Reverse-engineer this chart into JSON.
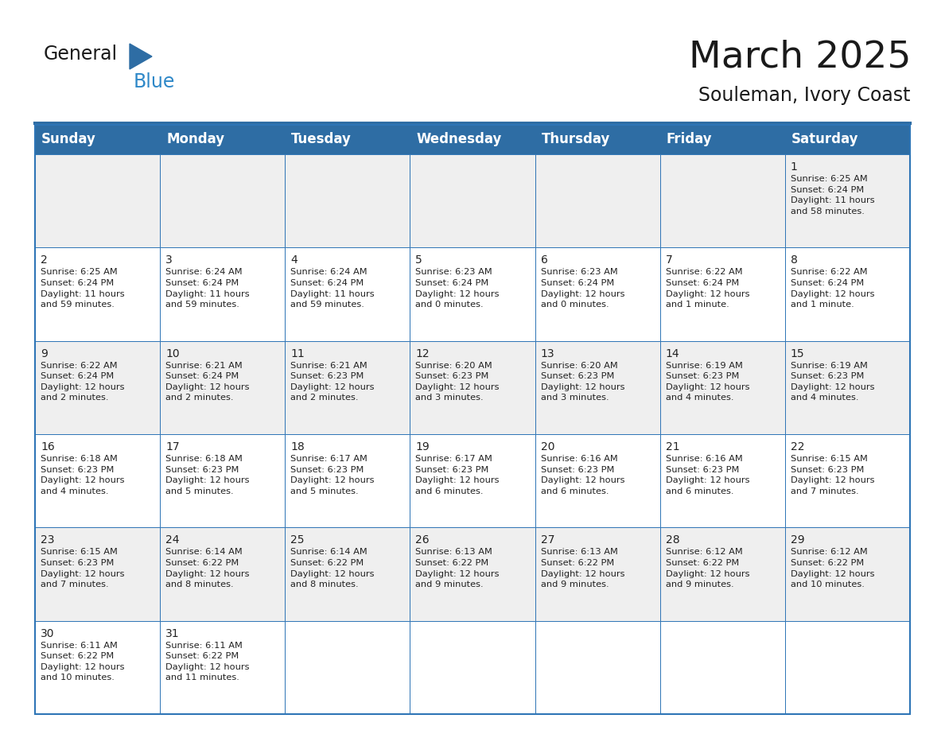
{
  "title": "March 2025",
  "subtitle": "Souleman, Ivory Coast",
  "header_color": "#2E6DA4",
  "header_text_color": "#FFFFFF",
  "cell_bg_even": "#EFEFEF",
  "cell_bg_odd": "#FFFFFF",
  "border_color": "#2E75B6",
  "text_color": "#222222",
  "day_headers": [
    "Sunday",
    "Monday",
    "Tuesday",
    "Wednesday",
    "Thursday",
    "Friday",
    "Saturday"
  ],
  "calendar_data": [
    [
      "",
      "",
      "",
      "",
      "",
      "",
      "1\nSunrise: 6:25 AM\nSunset: 6:24 PM\nDaylight: 11 hours\nand 58 minutes."
    ],
    [
      "2\nSunrise: 6:25 AM\nSunset: 6:24 PM\nDaylight: 11 hours\nand 59 minutes.",
      "3\nSunrise: 6:24 AM\nSunset: 6:24 PM\nDaylight: 11 hours\nand 59 minutes.",
      "4\nSunrise: 6:24 AM\nSunset: 6:24 PM\nDaylight: 11 hours\nand 59 minutes.",
      "5\nSunrise: 6:23 AM\nSunset: 6:24 PM\nDaylight: 12 hours\nand 0 minutes.",
      "6\nSunrise: 6:23 AM\nSunset: 6:24 PM\nDaylight: 12 hours\nand 0 minutes.",
      "7\nSunrise: 6:22 AM\nSunset: 6:24 PM\nDaylight: 12 hours\nand 1 minute.",
      "8\nSunrise: 6:22 AM\nSunset: 6:24 PM\nDaylight: 12 hours\nand 1 minute."
    ],
    [
      "9\nSunrise: 6:22 AM\nSunset: 6:24 PM\nDaylight: 12 hours\nand 2 minutes.",
      "10\nSunrise: 6:21 AM\nSunset: 6:24 PM\nDaylight: 12 hours\nand 2 minutes.",
      "11\nSunrise: 6:21 AM\nSunset: 6:23 PM\nDaylight: 12 hours\nand 2 minutes.",
      "12\nSunrise: 6:20 AM\nSunset: 6:23 PM\nDaylight: 12 hours\nand 3 minutes.",
      "13\nSunrise: 6:20 AM\nSunset: 6:23 PM\nDaylight: 12 hours\nand 3 minutes.",
      "14\nSunrise: 6:19 AM\nSunset: 6:23 PM\nDaylight: 12 hours\nand 4 minutes.",
      "15\nSunrise: 6:19 AM\nSunset: 6:23 PM\nDaylight: 12 hours\nand 4 minutes."
    ],
    [
      "16\nSunrise: 6:18 AM\nSunset: 6:23 PM\nDaylight: 12 hours\nand 4 minutes.",
      "17\nSunrise: 6:18 AM\nSunset: 6:23 PM\nDaylight: 12 hours\nand 5 minutes.",
      "18\nSunrise: 6:17 AM\nSunset: 6:23 PM\nDaylight: 12 hours\nand 5 minutes.",
      "19\nSunrise: 6:17 AM\nSunset: 6:23 PM\nDaylight: 12 hours\nand 6 minutes.",
      "20\nSunrise: 6:16 AM\nSunset: 6:23 PM\nDaylight: 12 hours\nand 6 minutes.",
      "21\nSunrise: 6:16 AM\nSunset: 6:23 PM\nDaylight: 12 hours\nand 6 minutes.",
      "22\nSunrise: 6:15 AM\nSunset: 6:23 PM\nDaylight: 12 hours\nand 7 minutes."
    ],
    [
      "23\nSunrise: 6:15 AM\nSunset: 6:23 PM\nDaylight: 12 hours\nand 7 minutes.",
      "24\nSunrise: 6:14 AM\nSunset: 6:22 PM\nDaylight: 12 hours\nand 8 minutes.",
      "25\nSunrise: 6:14 AM\nSunset: 6:22 PM\nDaylight: 12 hours\nand 8 minutes.",
      "26\nSunrise: 6:13 AM\nSunset: 6:22 PM\nDaylight: 12 hours\nand 9 minutes.",
      "27\nSunrise: 6:13 AM\nSunset: 6:22 PM\nDaylight: 12 hours\nand 9 minutes.",
      "28\nSunrise: 6:12 AM\nSunset: 6:22 PM\nDaylight: 12 hours\nand 9 minutes.",
      "29\nSunrise: 6:12 AM\nSunset: 6:22 PM\nDaylight: 12 hours\nand 10 minutes."
    ],
    [
      "30\nSunrise: 6:11 AM\nSunset: 6:22 PM\nDaylight: 12 hours\nand 10 minutes.",
      "31\nSunrise: 6:11 AM\nSunset: 6:22 PM\nDaylight: 12 hours\nand 11 minutes.",
      "",
      "",
      "",
      "",
      ""
    ]
  ],
  "logo_triangle_color": "#2E6DA4",
  "logo_blue_color": "#2E88C8",
  "title_fontsize": 34,
  "subtitle_fontsize": 17,
  "header_fontsize": 12,
  "cell_fontsize": 8.2,
  "day_number_fontsize": 10,
  "fig_width": 11.88,
  "fig_height": 9.18,
  "dpi": 100
}
